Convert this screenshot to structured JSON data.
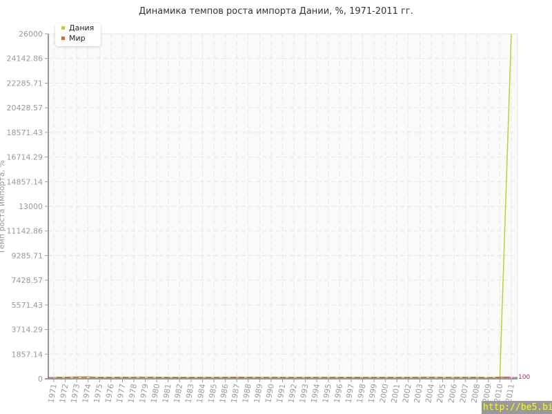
{
  "chart_data": {
    "type": "line",
    "title": "Динамика темпов роста импорта Дании, %, 1971-2011 гг.",
    "ylabel": "Темп роста импорта, %",
    "x": [
      1971,
      1972,
      1973,
      1974,
      1975,
      1976,
      1977,
      1978,
      1979,
      1980,
      1981,
      1982,
      1983,
      1984,
      1985,
      1986,
      1987,
      1988,
      1989,
      1990,
      1991,
      1992,
      1993,
      1994,
      1995,
      1996,
      1997,
      1998,
      1999,
      2000,
      2001,
      2002,
      2003,
      2004,
      2005,
      2006,
      2007,
      2008,
      2009,
      2010,
      2011
    ],
    "ylim": [
      0,
      26000
    ],
    "yticks": [
      "0",
      "1857.14",
      "3714.29",
      "5571.43",
      "7428.57",
      "9285.71",
      "11142.86",
      "13000",
      "14857.14",
      "16714.29",
      "18571.43",
      "20428.57",
      "22285.71",
      "24142.86",
      "26000"
    ],
    "reference_line": {
      "value": 100,
      "label": "100",
      "color": "#993355"
    },
    "grid": true,
    "legend_position": "top-left",
    "series": [
      {
        "name": "Дания",
        "color": "#b5d334",
        "values": [
          105,
          103,
          112,
          115,
          98,
          110,
          104,
          101,
          108,
          102,
          99,
          103,
          104,
          106,
          107,
          102,
          98,
          100,
          104,
          109,
          103,
          100,
          95,
          109,
          110,
          102,
          108,
          105,
          101,
          108,
          100,
          103,
          104,
          107,
          108,
          110,
          107,
          104,
          85,
          104,
          26000
        ]
      },
      {
        "name": "Мир",
        "color": "#e8632a",
        "values": [
          110,
          112,
          135,
          145,
          105,
          112,
          113,
          115,
          125,
          120,
          98,
          96,
          98,
          105,
          104,
          112,
          116,
          113,
          108,
          113,
          103,
          106,
          100,
          112,
          118,
          104,
          103,
          98,
          103,
          113,
          96,
          104,
          116,
          121,
          113,
          115,
          115,
          115,
          78,
          121,
          120
        ]
      }
    ]
  },
  "watermark": "http://be5.biz/"
}
